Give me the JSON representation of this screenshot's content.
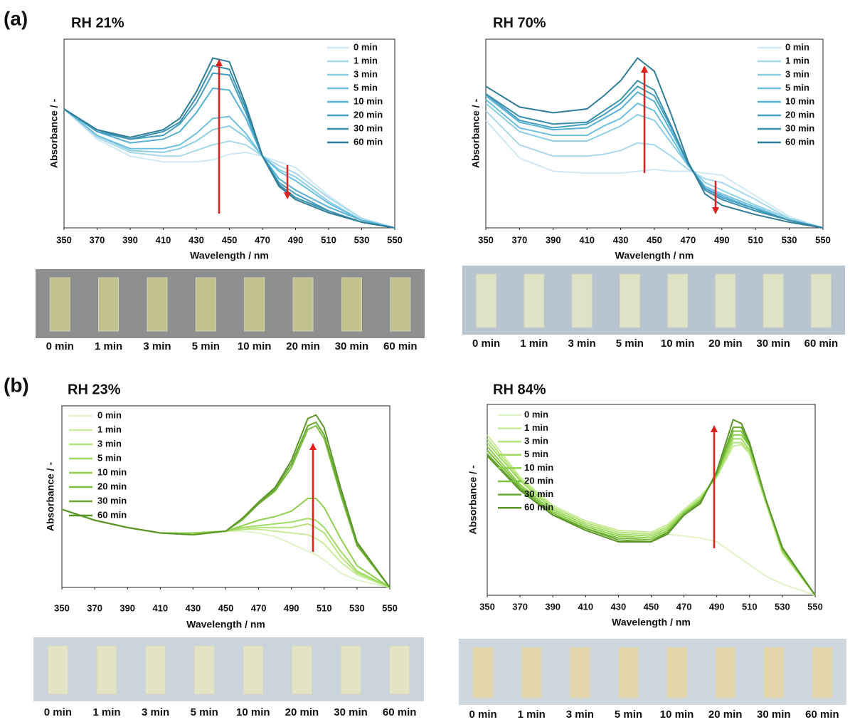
{
  "panel_labels": [
    "(a)",
    "(b)"
  ],
  "chart_data": [
    {
      "type": "line",
      "title": "RH 21%",
      "xlabel": "Wavelength  / nm",
      "ylabel": "Absorbance / -",
      "xlim": [
        350,
        550
      ],
      "ylim": [
        0,
        1
      ],
      "xticks": [
        350,
        370,
        390,
        410,
        430,
        450,
        470,
        490,
        510,
        530,
        550
      ],
      "legend": "upper right",
      "x": [
        350,
        370,
        390,
        410,
        420,
        430,
        440,
        450,
        460,
        470,
        480,
        490,
        510,
        530,
        550
      ],
      "series": [
        {
          "name": "0 min",
          "color": "#cfe8f3",
          "values": [
            0.63,
            0.47,
            0.38,
            0.35,
            0.35,
            0.35,
            0.36,
            0.39,
            0.4,
            0.38,
            0.35,
            0.32,
            0.17,
            0.05,
            0
          ]
        },
        {
          "name": "1 min",
          "color": "#a8d8eb",
          "values": [
            0.63,
            0.48,
            0.4,
            0.38,
            0.38,
            0.41,
            0.44,
            0.46,
            0.44,
            0.38,
            0.33,
            0.29,
            0.16,
            0.05,
            0
          ]
        },
        {
          "name": "3 min",
          "color": "#8ccfe6",
          "values": [
            0.63,
            0.49,
            0.41,
            0.4,
            0.42,
            0.46,
            0.52,
            0.54,
            0.48,
            0.38,
            0.31,
            0.27,
            0.14,
            0.04,
            0
          ]
        },
        {
          "name": "5 min",
          "color": "#6dc0df",
          "values": [
            0.63,
            0.49,
            0.42,
            0.42,
            0.44,
            0.5,
            0.58,
            0.59,
            0.5,
            0.38,
            0.3,
            0.25,
            0.13,
            0.04,
            0
          ]
        },
        {
          "name": "10 min",
          "color": "#55b1d4",
          "values": [
            0.63,
            0.51,
            0.45,
            0.47,
            0.51,
            0.61,
            0.74,
            0.73,
            0.58,
            0.38,
            0.26,
            0.2,
            0.11,
            0.04,
            0
          ]
        },
        {
          "name": "20 min",
          "color": "#479fc0",
          "values": [
            0.63,
            0.51,
            0.47,
            0.49,
            0.55,
            0.66,
            0.82,
            0.81,
            0.61,
            0.38,
            0.24,
            0.18,
            0.09,
            0.03,
            0
          ]
        },
        {
          "name": "30 min",
          "color": "#3a8fad",
          "values": [
            0.63,
            0.52,
            0.47,
            0.51,
            0.56,
            0.69,
            0.86,
            0.84,
            0.63,
            0.38,
            0.23,
            0.16,
            0.09,
            0.03,
            0
          ]
        },
        {
          "name": "60 min",
          "color": "#2f7d98",
          "values": [
            0.63,
            0.52,
            0.48,
            0.52,
            0.58,
            0.72,
            0.9,
            0.88,
            0.65,
            0.38,
            0.22,
            0.15,
            0.08,
            0.03,
            0
          ]
        }
      ],
      "strip_labels": [
        "0 min",
        "1 min",
        "3 min",
        "5 min",
        "10 min",
        "20 min",
        "30 min",
        "60 min"
      ]
    },
    {
      "type": "line",
      "title": "RH 70%",
      "xlabel": "Wavelength  / nm",
      "ylabel": "Absorbance / -",
      "xlim": [
        350,
        550
      ],
      "ylim": [
        0,
        1
      ],
      "xticks": [
        350,
        370,
        390,
        410,
        430,
        450,
        470,
        490,
        510,
        530,
        550
      ],
      "legend": "upper right",
      "x": [
        350,
        370,
        390,
        410,
        420,
        430,
        440,
        450,
        460,
        470,
        480,
        490,
        510,
        530,
        550
      ],
      "series": [
        {
          "name": "0 min",
          "color": "#cfe8f3",
          "values": [
            0.57,
            0.37,
            0.3,
            0.29,
            0.29,
            0.29,
            0.3,
            0.31,
            0.3,
            0.3,
            0.29,
            0.28,
            0.17,
            0.06,
            0
          ]
        },
        {
          "name": "1 min",
          "color": "#a8d8eb",
          "values": [
            0.62,
            0.44,
            0.38,
            0.38,
            0.39,
            0.41,
            0.45,
            0.44,
            0.38,
            0.31,
            0.26,
            0.24,
            0.15,
            0.05,
            0
          ]
        },
        {
          "name": "3 min",
          "color": "#8ccfe6",
          "values": [
            0.66,
            0.51,
            0.46,
            0.46,
            0.5,
            0.54,
            0.6,
            0.57,
            0.45,
            0.33,
            0.24,
            0.2,
            0.12,
            0.05,
            0
          ]
        },
        {
          "name": "5 min",
          "color": "#6dc0df",
          "values": [
            0.68,
            0.53,
            0.49,
            0.49,
            0.54,
            0.58,
            0.66,
            0.62,
            0.48,
            0.33,
            0.22,
            0.18,
            0.11,
            0.04,
            0
          ]
        },
        {
          "name": "10 min",
          "color": "#55b1d4",
          "values": [
            0.7,
            0.56,
            0.52,
            0.53,
            0.58,
            0.63,
            0.72,
            0.67,
            0.51,
            0.34,
            0.21,
            0.17,
            0.1,
            0.04,
            0
          ]
        },
        {
          "name": "20 min",
          "color": "#479fc0",
          "values": [
            0.71,
            0.57,
            0.53,
            0.55,
            0.6,
            0.66,
            0.75,
            0.7,
            0.53,
            0.34,
            0.21,
            0.16,
            0.1,
            0.04,
            0
          ]
        },
        {
          "name": "30 min",
          "color": "#3a8fad",
          "values": [
            0.71,
            0.59,
            0.55,
            0.56,
            0.62,
            0.68,
            0.78,
            0.73,
            0.54,
            0.34,
            0.2,
            0.15,
            0.09,
            0.04,
            0
          ]
        },
        {
          "name": "60 min",
          "color": "#2f7d98",
          "values": [
            0.75,
            0.64,
            0.61,
            0.63,
            0.7,
            0.78,
            0.9,
            0.83,
            0.6,
            0.35,
            0.18,
            0.12,
            0.07,
            0.03,
            0
          ]
        }
      ],
      "strip_labels": [
        "0 min",
        "1 min",
        "3 min",
        "5 min",
        "10 min",
        "20 min",
        "30 min",
        "60 min"
      ]
    },
    {
      "type": "line",
      "title": "RH 23%",
      "xlabel": "Wavelength  / nm",
      "ylabel": "Absorbance / -",
      "xlim": [
        350,
        550
      ],
      "ylim": [
        0,
        1
      ],
      "xticks": [
        350,
        370,
        390,
        410,
        430,
        450,
        470,
        490,
        510,
        530,
        550
      ],
      "legend": "upper left",
      "x": [
        350,
        370,
        390,
        410,
        430,
        450,
        460,
        470,
        480,
        490,
        500,
        505,
        510,
        520,
        530,
        550
      ],
      "series": [
        {
          "name": "0 min",
          "color": "#e2f3c8",
          "values": [
            0.43,
            0.37,
            0.33,
            0.3,
            0.3,
            0.31,
            0.31,
            0.3,
            0.28,
            0.24,
            0.2,
            0.18,
            0.15,
            0.08,
            0.04,
            0
          ]
        },
        {
          "name": "1 min",
          "color": "#c8ec97",
          "values": [
            0.43,
            0.37,
            0.33,
            0.3,
            0.3,
            0.31,
            0.32,
            0.32,
            0.31,
            0.3,
            0.29,
            0.27,
            0.24,
            0.14,
            0.07,
            0
          ]
        },
        {
          "name": "3 min",
          "color": "#b4e47b",
          "values": [
            0.43,
            0.37,
            0.33,
            0.3,
            0.3,
            0.31,
            0.32,
            0.33,
            0.33,
            0.33,
            0.35,
            0.33,
            0.3,
            0.17,
            0.08,
            0
          ]
        },
        {
          "name": "5 min",
          "color": "#a2db63",
          "values": [
            0.43,
            0.37,
            0.33,
            0.3,
            0.3,
            0.31,
            0.33,
            0.34,
            0.35,
            0.36,
            0.38,
            0.37,
            0.33,
            0.2,
            0.09,
            0
          ]
        },
        {
          "name": "10 min",
          "color": "#90d04f",
          "values": [
            0.43,
            0.37,
            0.33,
            0.3,
            0.3,
            0.31,
            0.34,
            0.37,
            0.39,
            0.42,
            0.49,
            0.49,
            0.44,
            0.27,
            0.12,
            0
          ]
        },
        {
          "name": "20 min",
          "color": "#7dbf3f",
          "values": [
            0.43,
            0.37,
            0.33,
            0.3,
            0.29,
            0.31,
            0.37,
            0.46,
            0.53,
            0.66,
            0.87,
            0.89,
            0.82,
            0.51,
            0.23,
            0
          ]
        },
        {
          "name": "30 min",
          "color": "#6aa834",
          "values": [
            0.43,
            0.37,
            0.33,
            0.3,
            0.29,
            0.31,
            0.38,
            0.46,
            0.54,
            0.68,
            0.89,
            0.91,
            0.84,
            0.53,
            0.24,
            0
          ]
        },
        {
          "name": "60 min",
          "color": "#5c962b",
          "values": [
            0.43,
            0.37,
            0.33,
            0.3,
            0.29,
            0.31,
            0.38,
            0.47,
            0.55,
            0.7,
            0.93,
            0.95,
            0.88,
            0.55,
            0.25,
            0
          ]
        }
      ],
      "strip_labels": [
        "0 min",
        "1 min",
        "3 min",
        "5 min",
        "10 min",
        "20 min",
        "30 min",
        "60 min"
      ]
    },
    {
      "type": "line",
      "title": "RH 84%",
      "xlabel": "Wavelength  / nm",
      "ylabel": "Absorbance / -",
      "xlim": [
        350,
        550
      ],
      "ylim": [
        0,
        1
      ],
      "xticks": [
        350,
        370,
        390,
        410,
        430,
        450,
        470,
        490,
        510,
        530,
        550
      ],
      "legend": "upper left",
      "x": [
        350,
        370,
        390,
        410,
        430,
        450,
        460,
        470,
        480,
        490,
        500,
        505,
        510,
        520,
        530,
        550
      ],
      "series": [
        {
          "name": "0 min",
          "color": "#e2f3c8",
          "values": [
            0.75,
            0.58,
            0.46,
            0.38,
            0.34,
            0.33,
            0.32,
            0.31,
            0.3,
            0.28,
            0.22,
            0.19,
            0.16,
            0.1,
            0.06,
            0
          ]
        },
        {
          "name": "1 min",
          "color": "#c8ec97",
          "values": [
            0.84,
            0.62,
            0.47,
            0.39,
            0.34,
            0.33,
            0.37,
            0.45,
            0.52,
            0.62,
            0.78,
            0.79,
            0.74,
            0.48,
            0.22,
            0
          ]
        },
        {
          "name": "3 min",
          "color": "#b4e47b",
          "values": [
            0.82,
            0.61,
            0.46,
            0.38,
            0.33,
            0.32,
            0.36,
            0.44,
            0.51,
            0.62,
            0.8,
            0.8,
            0.75,
            0.49,
            0.23,
            0
          ]
        },
        {
          "name": "5 min",
          "color": "#a2db63",
          "values": [
            0.8,
            0.6,
            0.45,
            0.37,
            0.32,
            0.31,
            0.35,
            0.44,
            0.5,
            0.63,
            0.82,
            0.82,
            0.76,
            0.49,
            0.23,
            0
          ]
        },
        {
          "name": "10 min",
          "color": "#90d04f",
          "values": [
            0.78,
            0.58,
            0.44,
            0.36,
            0.31,
            0.3,
            0.34,
            0.43,
            0.5,
            0.63,
            0.84,
            0.84,
            0.78,
            0.5,
            0.24,
            0
          ]
        },
        {
          "name": "20 min",
          "color": "#7dbf3f",
          "values": [
            0.76,
            0.57,
            0.43,
            0.35,
            0.3,
            0.29,
            0.33,
            0.43,
            0.49,
            0.64,
            0.86,
            0.86,
            0.78,
            0.5,
            0.24,
            0
          ]
        },
        {
          "name": "30 min",
          "color": "#6aa834",
          "values": [
            0.74,
            0.56,
            0.42,
            0.35,
            0.29,
            0.28,
            0.33,
            0.42,
            0.49,
            0.64,
            0.88,
            0.88,
            0.79,
            0.5,
            0.25,
            0
          ]
        },
        {
          "name": "60 min",
          "color": "#5c962b",
          "values": [
            0.73,
            0.55,
            0.42,
            0.34,
            0.28,
            0.28,
            0.32,
            0.42,
            0.48,
            0.65,
            0.92,
            0.9,
            0.8,
            0.5,
            0.25,
            0
          ]
        }
      ],
      "strip_labels": [
        "0 min",
        "1 min",
        "3 min",
        "5 min",
        "10 min",
        "20 min",
        "30 min",
        "60 min"
      ]
    }
  ]
}
